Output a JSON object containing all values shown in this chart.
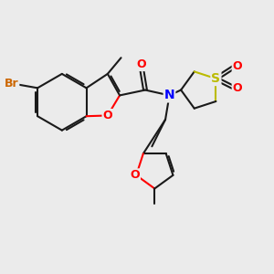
{
  "bg_color": "#ebebeb",
  "bond_color": "#1a1a1a",
  "bond_width": 1.5,
  "atom_colors": {
    "Br": "#cc6600",
    "O": "#ff0000",
    "N": "#0000ff",
    "S": "#bbbb00",
    "C": "#1a1a1a"
  },
  "figsize": [
    3.0,
    3.0
  ],
  "dpi": 100,
  "xlim": [
    -5.0,
    5.0
  ],
  "ylim": [
    -4.0,
    4.0
  ]
}
